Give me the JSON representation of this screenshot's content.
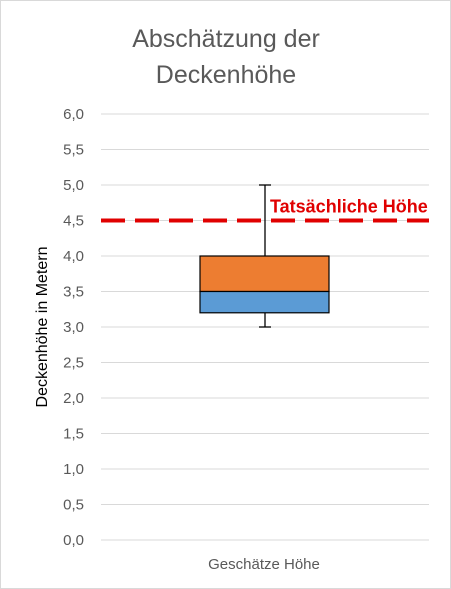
{
  "chart_data": {
    "type": "box",
    "title": [
      "Abschätzung der",
      "Deckenhöhe"
    ],
    "ylabel": "Deckenhöhe in Metern",
    "xlabel": "",
    "categories": [
      "Geschätze Höhe"
    ],
    "ylim": [
      0,
      6
    ],
    "yticks": [
      "0,0",
      "0,5",
      "1,0",
      "1,5",
      "2,0",
      "2,5",
      "3,0",
      "3,5",
      "4,0",
      "4,5",
      "5,0",
      "5,5",
      "6,0"
    ],
    "grid": true,
    "box": {
      "min": 3.0,
      "q1": 3.2,
      "median": 3.5,
      "q3": 4.0,
      "max": 5.0,
      "lower_color": "#5b9bd5",
      "upper_color": "#ed7d31"
    },
    "reference_line": {
      "value": 4.5,
      "label": "Tatsächliche Höhe",
      "color": "#e00000",
      "style": "dashed"
    }
  }
}
